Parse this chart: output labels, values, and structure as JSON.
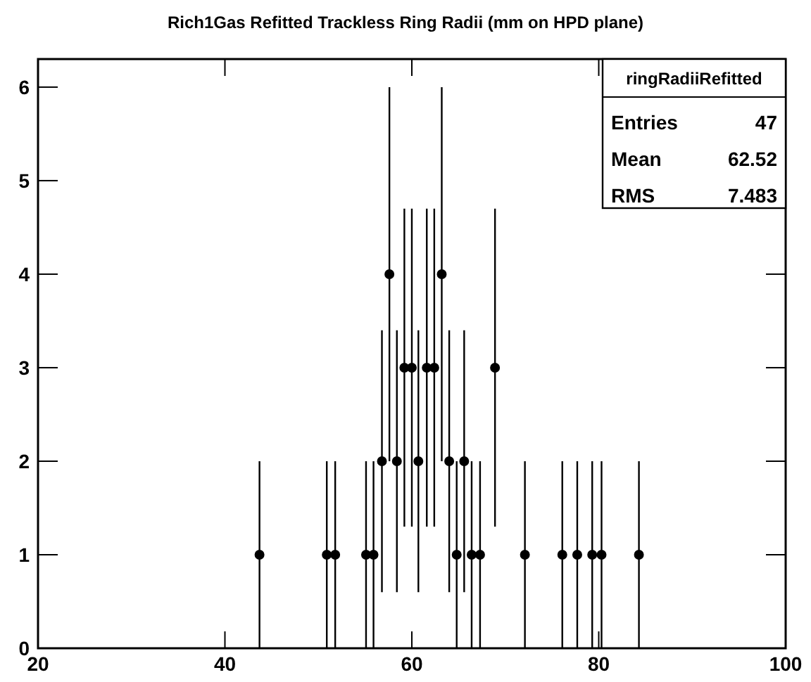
{
  "chart_data": {
    "type": "scatter",
    "title": "Rich1Gas Refitted Trackless Ring Radii (mm on HPD plane)",
    "x": [
      43.7,
      50.9,
      51.8,
      55.1,
      55.9,
      56.8,
      57.6,
      58.4,
      59.2,
      60.0,
      60.7,
      61.6,
      62.4,
      63.2,
      64.0,
      64.8,
      65.6,
      66.4,
      67.3,
      68.9,
      72.1,
      76.1,
      77.7,
      79.3,
      80.3,
      84.3
    ],
    "series": [
      {
        "color": "#000000",
        "values": [
          1,
          1,
          1,
          1,
          1,
          2,
          4,
          2,
          3,
          3,
          2,
          3,
          3,
          4,
          2,
          1,
          2,
          1,
          1,
          3,
          1,
          1,
          1,
          1,
          1,
          1
        ],
        "errors": [
          1,
          1,
          1,
          1,
          1,
          1.4,
          2,
          1.4,
          1.7,
          1.7,
          1.4,
          1.7,
          1.7,
          2,
          1.4,
          1,
          1.4,
          1,
          1,
          1.7,
          1,
          1,
          1,
          1,
          1,
          1
        ]
      }
    ],
    "marker": "circle",
    "xlim": [
      20,
      100
    ],
    "xticks": [
      20,
      40,
      60,
      80,
      100
    ],
    "ylim": [
      0,
      6.3
    ],
    "yticks": [
      0,
      1,
      2,
      3,
      4,
      5,
      6
    ],
    "grid": false,
    "annotations": [
      "ringRadiiRefitted",
      "Entries",
      "47",
      "Mean",
      "62.52",
      "RMS",
      "7.483"
    ]
  }
}
